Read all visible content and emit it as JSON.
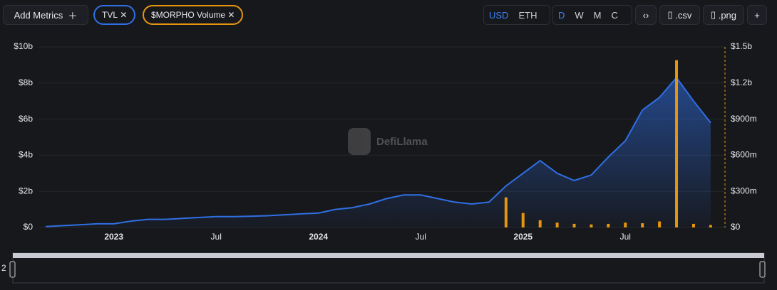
{
  "toolbar": {
    "add_metrics": "Add Metrics",
    "chips": [
      "TVL",
      "$MORPHO Volume"
    ],
    "currency": [
      "USD",
      "ETH"
    ],
    "intervals": [
      "D",
      "W",
      "M",
      "C"
    ],
    "exports": [
      ".csv",
      ".png"
    ]
  },
  "watermark": "DefiLlama",
  "brush_label": "2",
  "chart_data": {
    "type": "line",
    "x": [
      "2022-09",
      "2022-10",
      "2022-11",
      "2022-12",
      "2023-01",
      "2023-02",
      "2023-03",
      "2023-04",
      "2023-05",
      "2023-06",
      "2023-07",
      "2023-08",
      "2023-09",
      "2023-10",
      "2023-11",
      "2023-12",
      "2024-01",
      "2024-02",
      "2024-03",
      "2024-04",
      "2024-05",
      "2024-06",
      "2024-07",
      "2024-08",
      "2024-09",
      "2024-10",
      "2024-11",
      "2024-12",
      "2025-01",
      "2025-02",
      "2025-03",
      "2025-04",
      "2025-05",
      "2025-06",
      "2025-07",
      "2025-08",
      "2025-09",
      "2025-10",
      "2025-11",
      "2025-12"
    ],
    "series": [
      {
        "name": "TVL",
        "color": "#2f6fe4",
        "values": [
          0.05,
          0.1,
          0.15,
          0.2,
          0.2,
          0.35,
          0.45,
          0.45,
          0.5,
          0.55,
          0.6,
          0.6,
          0.62,
          0.65,
          0.7,
          0.75,
          0.8,
          1.0,
          1.1,
          1.3,
          1.6,
          1.8,
          1.8,
          1.6,
          1.4,
          1.3,
          1.4,
          2.3,
          3.0,
          3.7,
          3.0,
          2.6,
          2.9,
          3.9,
          4.8,
          6.5,
          7.2,
          8.3,
          7.0,
          5.8
        ]
      },
      {
        "name": "$MORPHO Volume",
        "color": "#e6960e",
        "axis": "y2",
        "values": [
          null,
          null,
          null,
          null,
          null,
          null,
          null,
          null,
          null,
          null,
          null,
          null,
          null,
          null,
          null,
          null,
          null,
          null,
          null,
          null,
          null,
          null,
          null,
          null,
          null,
          null,
          null,
          250,
          120,
          60,
          40,
          30,
          25,
          30,
          40,
          35,
          50,
          1390,
          30,
          20
        ]
      }
    ],
    "ylim": [
      0,
      10
    ],
    "yticks": [
      {
        "value": 0,
        "label": "$0"
      },
      {
        "value": 2,
        "label": "$2b"
      },
      {
        "value": 4,
        "label": "$4b"
      },
      {
        "value": 6,
        "label": "$6b"
      },
      {
        "value": 8,
        "label": "$8b"
      },
      {
        "value": 10,
        "label": "$10b"
      }
    ],
    "y2lim": [
      0,
      1500
    ],
    "y2ticks": [
      {
        "value": 0,
        "label": "$0"
      },
      {
        "value": 300,
        "label": "$300m"
      },
      {
        "value": 600,
        "label": "$600m"
      },
      {
        "value": 900,
        "label": "$900m"
      },
      {
        "value": 1200,
        "label": "$1.2b"
      },
      {
        "value": 1500,
        "label": "$1.5b"
      }
    ],
    "xticks": [
      {
        "value": "2023-01",
        "label": "2023"
      },
      {
        "value": "2023-07",
        "label": "Jul"
      },
      {
        "value": "2024-01",
        "label": "2024"
      },
      {
        "value": "2024-07",
        "label": "Jul"
      },
      {
        "value": "2025-01",
        "label": "2025"
      },
      {
        "value": "2025-07",
        "label": "Jul"
      }
    ],
    "grid": true
  }
}
